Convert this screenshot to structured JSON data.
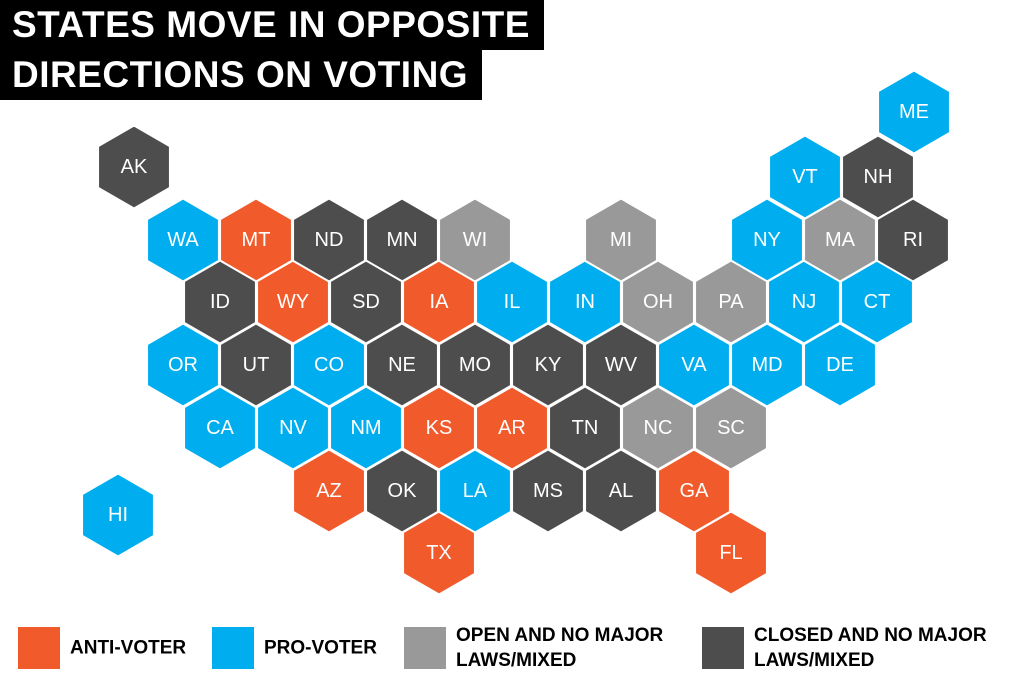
{
  "title": [
    "STATES MOVE IN OPPOSITE",
    "DIRECTIONS ON VOTING"
  ],
  "legend": [
    {
      "label": [
        "ANTI-VOTER"
      ],
      "color": "#f15a2b",
      "states": [
        "MT",
        "WY",
        "IA",
        "KS",
        "AR",
        "AZ",
        "GA",
        "TX",
        "FL"
      ]
    },
    {
      "label": [
        "PRO-VOTER"
      ],
      "color": "#00aeef",
      "states": [
        "ME",
        "VT",
        "WA",
        "NY",
        "IL",
        "IN",
        "NJ",
        "CT",
        "OR",
        "CO",
        "VA",
        "MD",
        "DE",
        "CA",
        "NV",
        "NM",
        "LA",
        "HI"
      ]
    },
    {
      "label": [
        "OPEN AND NO MAJOR",
        "LAWS/MIXED"
      ],
      "color": "#999999",
      "states": [
        "WI",
        "MI",
        "MA",
        "OH",
        "PA",
        "NC",
        "SC"
      ]
    },
    {
      "label": [
        "CLOSED AND NO MAJOR",
        "LAWS/MIXED"
      ],
      "color": "#4d4d4d",
      "states": [
        "AK",
        "NH",
        "ND",
        "MN",
        "RI",
        "ID",
        "SD",
        "UT",
        "NE",
        "MO",
        "KY",
        "WV",
        "TN",
        "OK",
        "MS",
        "AL"
      ]
    }
  ]
}
